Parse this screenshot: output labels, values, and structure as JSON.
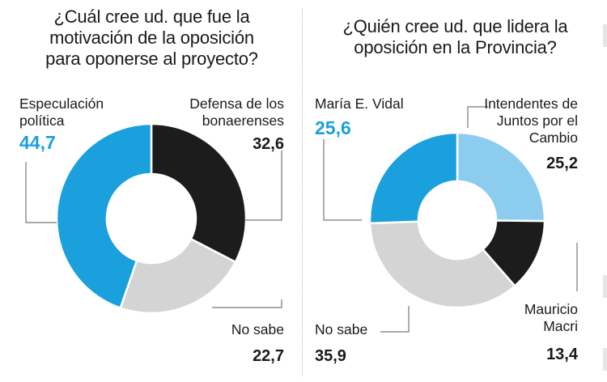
{
  "chart_data": [
    {
      "type": "pie",
      "title_lines": [
        "¿Cuál cree ud. que fue la",
        "motivación de la oposición",
        "para oponerse al proyecto?"
      ],
      "slices": [
        {
          "label_lines": [
            "Defensa de los",
            "bonaerenses"
          ],
          "value": 32.6,
          "value_text": "32,6",
          "color": "#1c1c1c"
        },
        {
          "label_lines": [
            "No sabe"
          ],
          "value": 22.7,
          "value_text": "22,7",
          "color": "#d4d4d4"
        },
        {
          "label_lines": [
            "Especulación",
            "política"
          ],
          "value": 44.7,
          "value_text": "44,7",
          "color": "#1aa0dc",
          "highlight": true
        }
      ]
    },
    {
      "type": "pie",
      "title_lines": [
        "¿Quién cree ud. que lidera la",
        "oposición en la Provincia?"
      ],
      "slices": [
        {
          "label_lines": [
            "Intendentes de",
            "Juntos por el",
            "Cambio"
          ],
          "value": 25.2,
          "value_text": "25,2",
          "color": "#8ccdef"
        },
        {
          "label_lines": [
            "Mauricio",
            "Macri"
          ],
          "value": 13.4,
          "value_text": "13,4",
          "color": "#1c1c1c"
        },
        {
          "label_lines": [
            "No sabe"
          ],
          "value": 35.9,
          "value_text": "35,9",
          "color": "#d4d4d4"
        },
        {
          "label_lines": [
            "María E. Vidal"
          ],
          "value": 25.6,
          "value_text": "25,6",
          "color": "#1aa0dc",
          "highlight": true
        }
      ]
    }
  ]
}
